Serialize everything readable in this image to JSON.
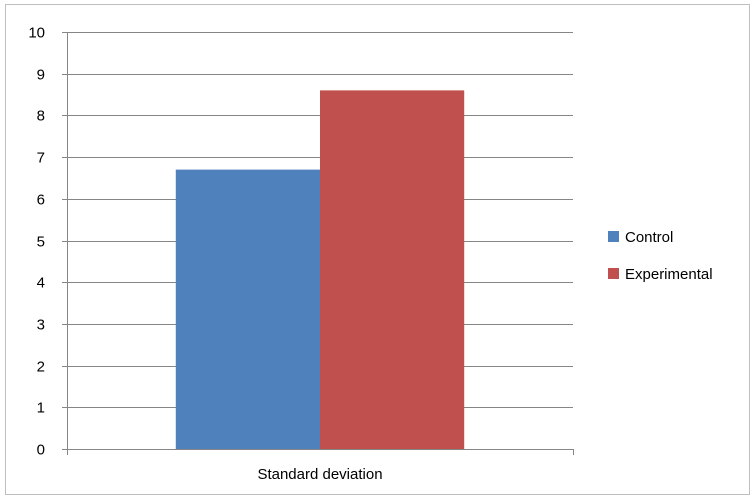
{
  "chart_data": {
    "type": "bar",
    "categories": [
      "Standard deviation"
    ],
    "series": [
      {
        "name": "Control",
        "values": [
          6.7
        ],
        "color": "#4F81BD"
      },
      {
        "name": "Experimental",
        "values": [
          8.6
        ],
        "color": "#C0504D"
      }
    ],
    "ylim": [
      0,
      10
    ],
    "yticks": [
      "0",
      "1",
      "2",
      "3",
      "4",
      "5",
      "6",
      "7",
      "8",
      "9",
      "10"
    ],
    "grid": true,
    "legend_position": "right"
  }
}
